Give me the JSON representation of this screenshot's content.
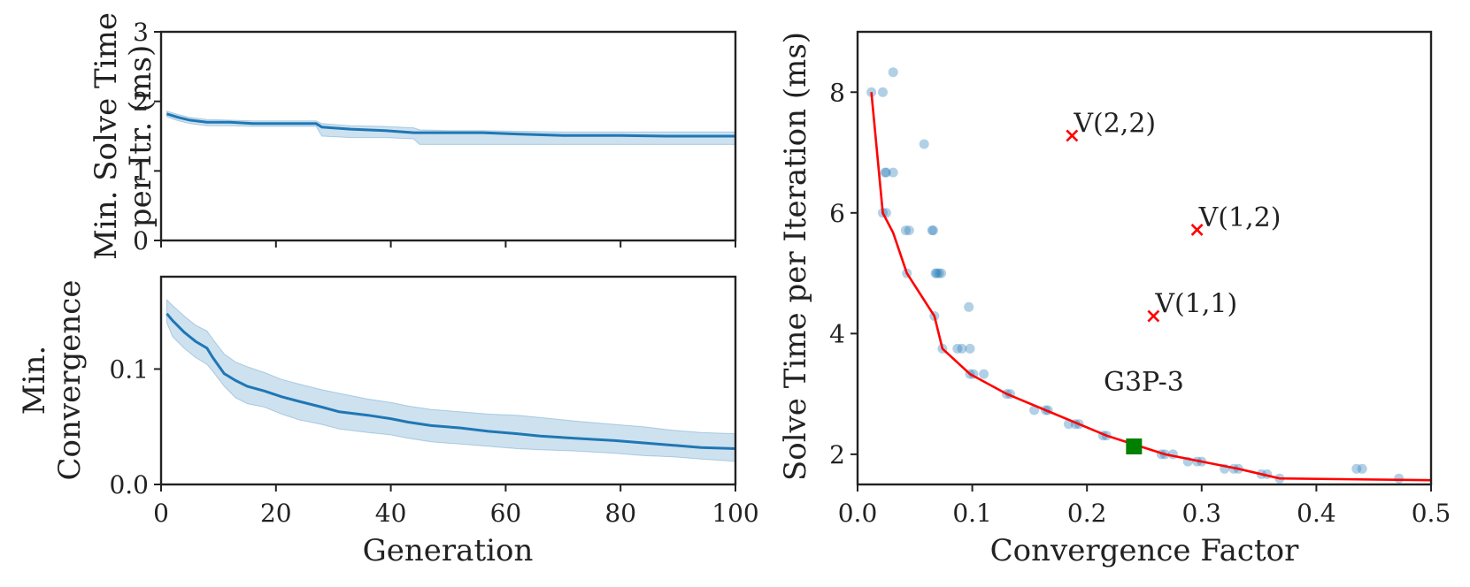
{
  "chart_data": [
    {
      "type": "line",
      "title": "",
      "xlabel": "",
      "ylabel": "Min. Solve Time\nper Itr. (ms)",
      "xlim": [
        0,
        100
      ],
      "ylim": [
        0,
        3
      ],
      "xticks": [
        0,
        20,
        40,
        60,
        80,
        100
      ],
      "xtick_labels": [
        "",
        "",
        "",
        "",
        "",
        ""
      ],
      "yticks": [
        0,
        1,
        2,
        3
      ],
      "ytick_labels": [
        "0",
        "1",
        "2",
        "3"
      ],
      "series": [
        {
          "name": "mean",
          "color": "#1f77b4",
          "x": [
            1,
            3,
            5,
            8,
            12,
            16,
            20,
            27,
            28,
            33,
            39,
            44,
            45,
            50,
            56,
            62,
            70,
            80,
            88,
            100
          ],
          "y": [
            1.82,
            1.77,
            1.73,
            1.7,
            1.7,
            1.68,
            1.68,
            1.68,
            1.63,
            1.6,
            1.58,
            1.55,
            1.55,
            1.55,
            1.55,
            1.53,
            1.51,
            1.51,
            1.5,
            1.5
          ],
          "lower": [
            1.78,
            1.72,
            1.68,
            1.65,
            1.65,
            1.64,
            1.64,
            1.64,
            1.5,
            1.48,
            1.48,
            1.46,
            1.38,
            1.38,
            1.38,
            1.38,
            1.38,
            1.38,
            1.38,
            1.38
          ],
          "upper": [
            1.86,
            1.81,
            1.77,
            1.74,
            1.73,
            1.72,
            1.72,
            1.72,
            1.68,
            1.65,
            1.64,
            1.62,
            1.59,
            1.58,
            1.58,
            1.57,
            1.56,
            1.56,
            1.56,
            1.56
          ]
        }
      ]
    },
    {
      "type": "line",
      "title": "",
      "xlabel": "Generation",
      "ylabel": "Min.\nConvergence",
      "xlim": [
        0,
        100
      ],
      "ylim": [
        0,
        0.18
      ],
      "xticks": [
        0,
        20,
        40,
        60,
        80,
        100
      ],
      "xtick_labels": [
        "0",
        "20",
        "40",
        "60",
        "80",
        "100"
      ],
      "yticks": [
        0,
        0.1
      ],
      "ytick_labels": [
        "0.0",
        "0.1"
      ],
      "series": [
        {
          "name": "mean",
          "color": "#1f77b4",
          "x": [
            1,
            2,
            4,
            6,
            8,
            9,
            11,
            13,
            15,
            18,
            21,
            24,
            28,
            31,
            36,
            40,
            43,
            47,
            52,
            57,
            62,
            66,
            72,
            79,
            84,
            89,
            94,
            100
          ],
          "y": [
            0.148,
            0.142,
            0.132,
            0.124,
            0.118,
            0.11,
            0.096,
            0.09,
            0.085,
            0.081,
            0.076,
            0.072,
            0.067,
            0.063,
            0.06,
            0.057,
            0.054,
            0.051,
            0.049,
            0.046,
            0.044,
            0.042,
            0.04,
            0.038,
            0.036,
            0.034,
            0.032,
            0.031
          ],
          "lower": [
            0.14,
            0.128,
            0.118,
            0.11,
            0.104,
            0.098,
            0.085,
            0.075,
            0.07,
            0.067,
            0.061,
            0.056,
            0.052,
            0.048,
            0.045,
            0.043,
            0.04,
            0.037,
            0.035,
            0.033,
            0.031,
            0.03,
            0.029,
            0.027,
            0.025,
            0.024,
            0.022,
            0.02
          ],
          "upper": [
            0.16,
            0.155,
            0.146,
            0.138,
            0.133,
            0.126,
            0.113,
            0.106,
            0.102,
            0.097,
            0.091,
            0.087,
            0.082,
            0.079,
            0.074,
            0.071,
            0.068,
            0.065,
            0.063,
            0.061,
            0.06,
            0.058,
            0.055,
            0.052,
            0.05,
            0.047,
            0.045,
            0.044
          ]
        }
      ]
    },
    {
      "type": "scatter",
      "title": "",
      "xlabel": "Convergence Factor",
      "ylabel": "Solve Time per Iteration (ms)",
      "xlim": [
        0,
        0.5
      ],
      "ylim": [
        1.5,
        9.0
      ],
      "xticks": [
        0,
        0.1,
        0.2,
        0.3,
        0.4,
        0.5
      ],
      "xtick_labels": [
        "0.0",
        "0.1",
        "0.2",
        "0.3",
        "0.4",
        "0.5"
      ],
      "yticks": [
        2,
        4,
        6,
        8
      ],
      "ytick_labels": [
        "2",
        "4",
        "6",
        "8"
      ],
      "points": [
        [
          0.012,
          8.0
        ],
        [
          0.022,
          8.0
        ],
        [
          0.031,
          8.33
        ],
        [
          0.024,
          6.67
        ],
        [
          0.025,
          6.67
        ],
        [
          0.031,
          6.67
        ],
        [
          0.058,
          7.14
        ],
        [
          0.022,
          6.0
        ],
        [
          0.025,
          6.0
        ],
        [
          0.042,
          5.71
        ],
        [
          0.045,
          5.71
        ],
        [
          0.066,
          5.71
        ],
        [
          0.065,
          5.71
        ],
        [
          0.043,
          5.0
        ],
        [
          0.068,
          5.0
        ],
        [
          0.071,
          5.0
        ],
        [
          0.073,
          5.0
        ],
        [
          0.069,
          5.0
        ],
        [
          0.067,
          4.29
        ],
        [
          0.097,
          4.44
        ],
        [
          0.074,
          3.75
        ],
        [
          0.087,
          3.75
        ],
        [
          0.091,
          3.75
        ],
        [
          0.098,
          3.75
        ],
        [
          0.098,
          3.33
        ],
        [
          0.101,
          3.33
        ],
        [
          0.11,
          3.33
        ],
        [
          0.13,
          3.0
        ],
        [
          0.133,
          3.0
        ],
        [
          0.154,
          2.73
        ],
        [
          0.164,
          2.73
        ],
        [
          0.166,
          2.73
        ],
        [
          0.184,
          2.5
        ],
        [
          0.19,
          2.5
        ],
        [
          0.193,
          2.5
        ],
        [
          0.214,
          2.31
        ],
        [
          0.217,
          2.31
        ],
        [
          0.265,
          2.0
        ],
        [
          0.268,
          2.0
        ],
        [
          0.275,
          2.0
        ],
        [
          0.288,
          1.88
        ],
        [
          0.296,
          1.88
        ],
        [
          0.3,
          1.88
        ],
        [
          0.32,
          1.76
        ],
        [
          0.328,
          1.76
        ],
        [
          0.332,
          1.76
        ],
        [
          0.352,
          1.67
        ],
        [
          0.357,
          1.67
        ],
        [
          0.368,
          1.6
        ],
        [
          0.435,
          1.76
        ],
        [
          0.44,
          1.76
        ],
        [
          0.472,
          1.6
        ]
      ],
      "pareto_front": {
        "color": "#ff0000",
        "x": [
          0.012,
          0.022,
          0.031,
          0.043,
          0.067,
          0.074,
          0.098,
          0.13,
          0.164,
          0.193,
          0.217,
          0.268,
          0.3,
          0.332,
          0.368,
          0.5
        ],
        "y": [
          8.0,
          6.0,
          5.67,
          5.0,
          4.29,
          3.75,
          3.33,
          3.0,
          2.73,
          2.5,
          2.31,
          2.0,
          1.88,
          1.76,
          1.6,
          1.57
        ]
      },
      "markers": [
        {
          "label": "V(2,2)",
          "x": 0.187,
          "y": 7.28,
          "color": "#ff0000",
          "shape": "x"
        },
        {
          "label": "V(1,2)",
          "x": 0.296,
          "y": 5.72,
          "color": "#ff0000",
          "shape": "x"
        },
        {
          "label": "V(1,1)",
          "x": 0.258,
          "y": 4.29,
          "color": "#ff0000",
          "shape": "x"
        }
      ],
      "highlight": {
        "label": "G3P-3",
        "x": 0.241,
        "y": 2.13,
        "color": "#008000",
        "shape": "square"
      }
    }
  ]
}
